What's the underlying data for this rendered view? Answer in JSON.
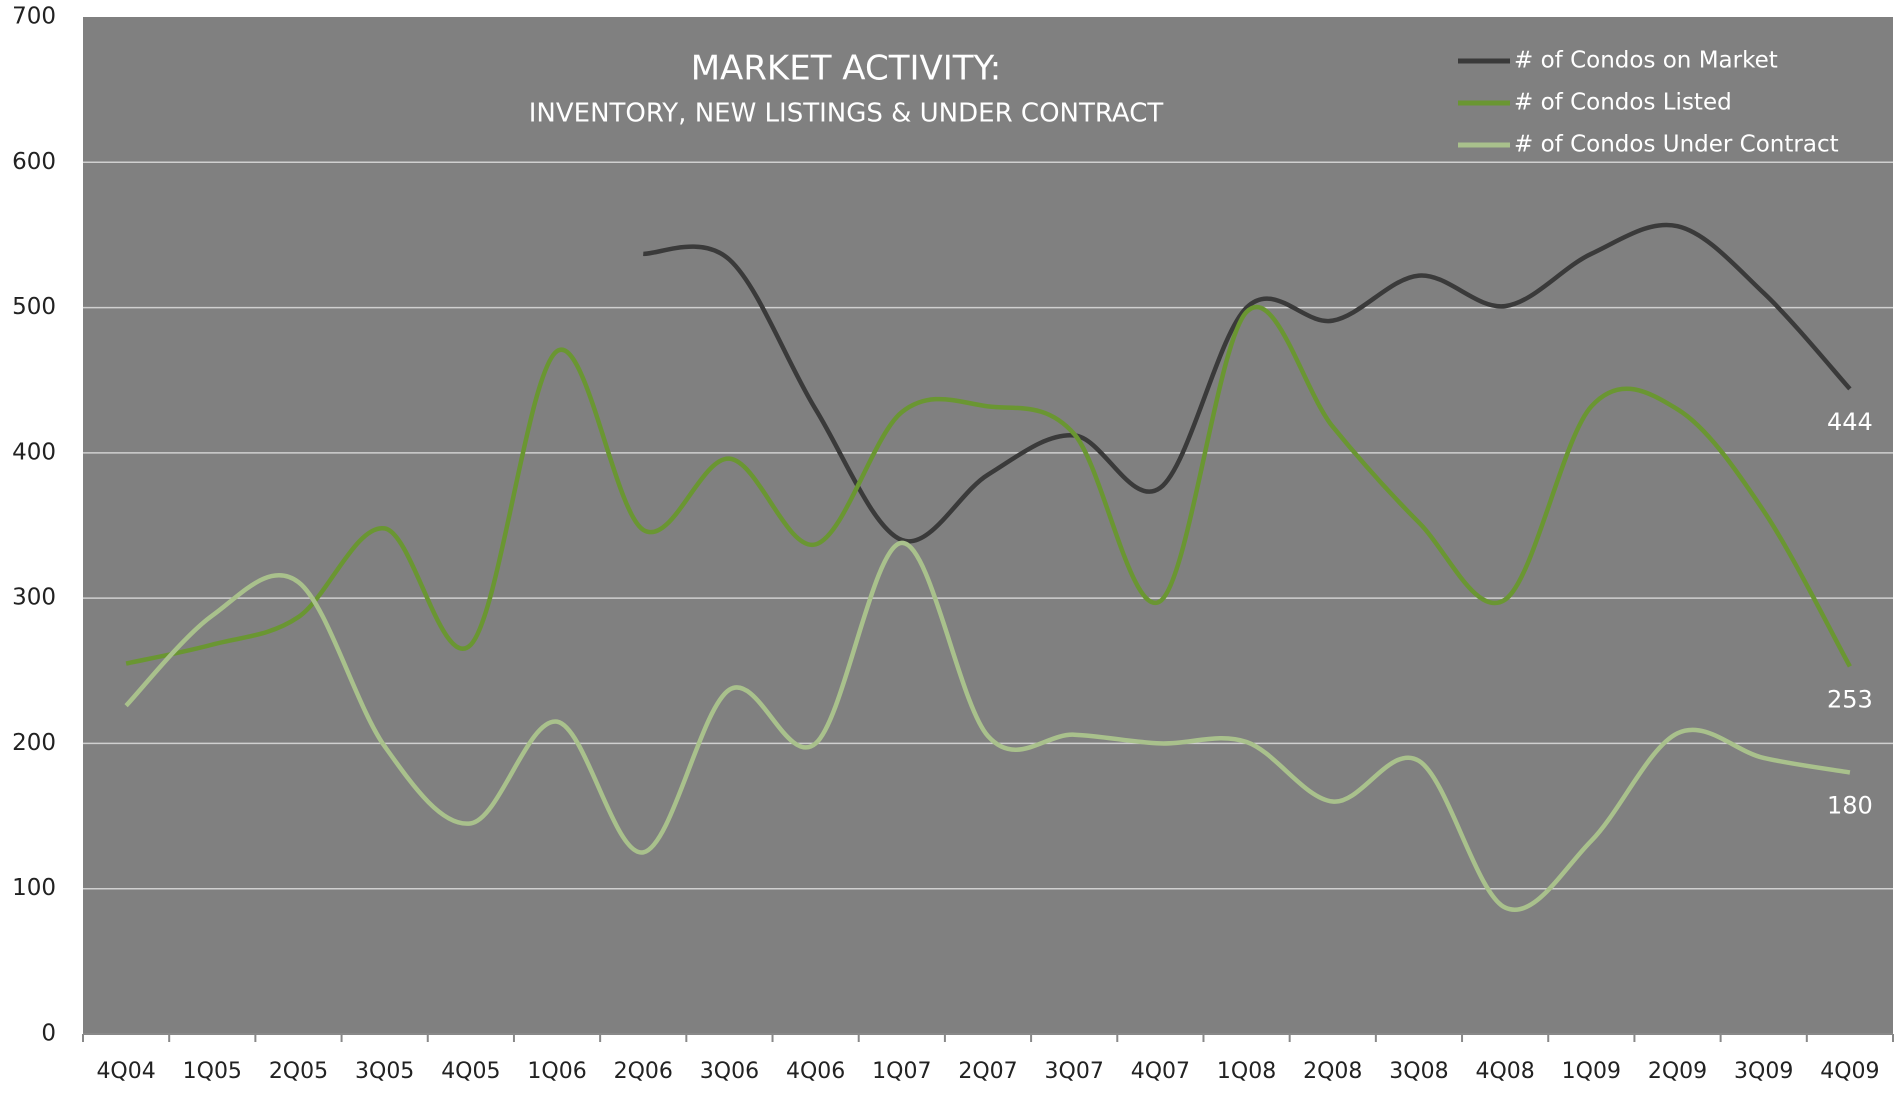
{
  "chart_data": {
    "type": "line",
    "title": "MARKET  ACTIVITY:",
    "subtitle": "INVENTORY, NEW LISTINGS & UNDER CONTRACT",
    "categories": [
      "4Q04",
      "1Q05",
      "2Q05",
      "3Q05",
      "4Q05",
      "1Q06",
      "2Q06",
      "3Q06",
      "4Q06",
      "1Q07",
      "2Q07",
      "3Q07",
      "4Q07",
      "1Q08",
      "2Q08",
      "3Q08",
      "4Q08",
      "1Q09",
      "2Q09",
      "3Q09",
      "4Q09"
    ],
    "series": [
      {
        "name": "# of Condos on Market",
        "color": "#3a3a3a",
        "values": [
          null,
          null,
          null,
          null,
          null,
          null,
          537,
          533,
          430,
          340,
          385,
          412,
          376,
          500,
          491,
          522,
          501,
          537,
          556,
          510,
          444
        ]
      },
      {
        "name": "# of Condos Listed",
        "color": "#6a9632",
        "values": [
          255,
          268,
          287,
          348,
          268,
          470,
          347,
          396,
          337,
          428,
          432,
          413,
          298,
          497,
          418,
          352,
          299,
          432,
          430,
          360,
          253
        ]
      },
      {
        "name": "# of Condos Under  Contract",
        "color": "#a9c18c",
        "values": [
          226,
          288,
          311,
          198,
          145,
          215,
          125,
          237,
          200,
          338,
          205,
          206,
          200,
          201,
          160,
          188,
          87,
          133,
          207,
          190,
          180
        ]
      }
    ],
    "ylim": [
      0,
      700
    ],
    "yticks": [
      0,
      100,
      200,
      300,
      400,
      500,
      600,
      700
    ],
    "grid": true,
    "legend": "upper right"
  }
}
